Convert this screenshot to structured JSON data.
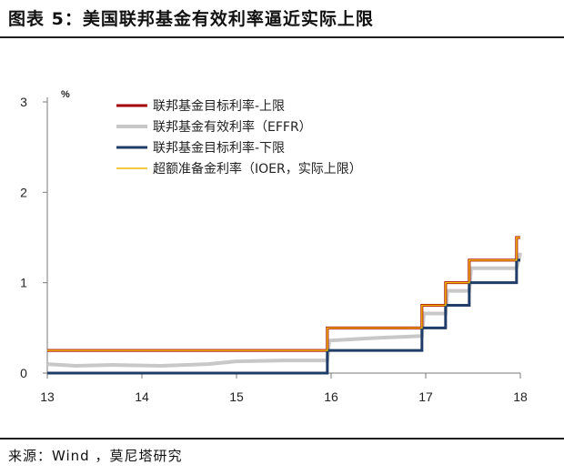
{
  "header": {
    "title": "图表 5：美国联邦基金有效利率逼近实际上限"
  },
  "footer": {
    "source": "来源：Wind ，莫尼塔研究"
  },
  "chart_data": {
    "type": "line",
    "unit_label": "%",
    "ylim": [
      0,
      3
    ],
    "xlim": [
      2013,
      2018
    ],
    "y_ticks": [
      0,
      1,
      2,
      3
    ],
    "x_ticks": [
      {
        "value": 2013,
        "label": "13"
      },
      {
        "value": 2014,
        "label": "14"
      },
      {
        "value": 2015,
        "label": "15"
      },
      {
        "value": 2016,
        "label": "16"
      },
      {
        "value": 2017,
        "label": "17"
      },
      {
        "value": 2018,
        "label": "18"
      }
    ],
    "grid": false,
    "legend_position": "top-left",
    "series": [
      {
        "name": "联邦基金目标利率-上限",
        "color": "#a50000",
        "width": 3,
        "shape": "step",
        "x": [
          2013.0,
          2015.96,
          2016.96,
          2017.21,
          2017.46,
          2017.96,
          2018.0
        ],
        "y": [
          0.25,
          0.5,
          0.75,
          1.0,
          1.25,
          1.5,
          1.5
        ]
      },
      {
        "name": "联邦基金有效利率（EFFR）",
        "color": "#c8c8c8",
        "width": 4,
        "shape": "line",
        "x": [
          2013.0,
          2013.3,
          2013.7,
          2014.2,
          2014.7,
          2015.0,
          2015.5,
          2015.96,
          2015.98,
          2016.5,
          2016.96,
          2016.98,
          2017.21,
          2017.23,
          2017.46,
          2017.48,
          2017.96,
          2018.0
        ],
        "y": [
          0.1,
          0.08,
          0.09,
          0.08,
          0.1,
          0.13,
          0.14,
          0.14,
          0.36,
          0.39,
          0.41,
          0.66,
          0.66,
          0.91,
          0.91,
          1.16,
          1.16,
          1.33
        ]
      },
      {
        "name": "联邦基金目标利率-下限",
        "color": "#1f3d66",
        "width": 3,
        "shape": "step",
        "x": [
          2013.0,
          2015.96,
          2016.96,
          2017.21,
          2017.46,
          2017.96,
          2018.0
        ],
        "y": [
          0.0,
          0.25,
          0.5,
          0.75,
          1.0,
          1.25,
          1.25
        ]
      },
      {
        "name": "超额准备金利率（IOER，实际上限）",
        "color": "#f0b800",
        "width": 1.5,
        "shape": "step",
        "x": [
          2013.0,
          2015.96,
          2016.96,
          2017.21,
          2017.46,
          2017.96,
          2018.0
        ],
        "y": [
          0.25,
          0.5,
          0.75,
          1.0,
          1.25,
          1.5,
          1.5
        ]
      }
    ]
  }
}
